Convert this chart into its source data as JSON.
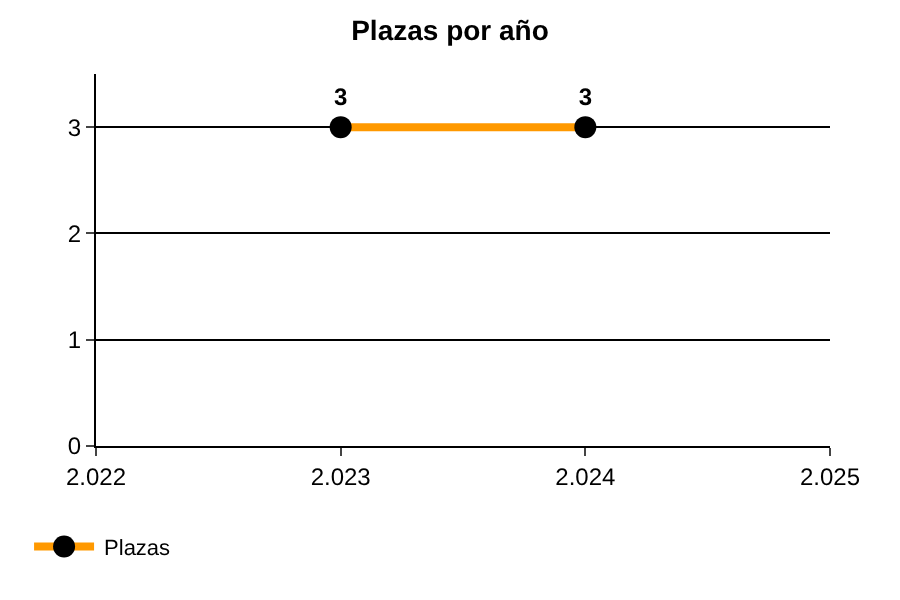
{
  "chart_data": {
    "type": "line",
    "title": "Plazas por año",
    "x": [
      2023,
      2024
    ],
    "series": [
      {
        "name": "Plazas",
        "color": "#ff9900",
        "values": [
          3,
          3
        ]
      }
    ],
    "xlim": [
      2022,
      2025
    ],
    "xticks": [
      {
        "value": 2022,
        "label": "2.022"
      },
      {
        "value": 2023,
        "label": "2.023"
      },
      {
        "value": 2024,
        "label": "2.024"
      },
      {
        "value": 2025,
        "label": "2.025"
      }
    ],
    "ylim": [
      0,
      3.5
    ],
    "yticks": [
      0,
      1,
      2,
      3
    ],
    "grid": "y",
    "legend": "bottom left",
    "marker": "circle",
    "line_style": "solid",
    "data_labels": true
  }
}
